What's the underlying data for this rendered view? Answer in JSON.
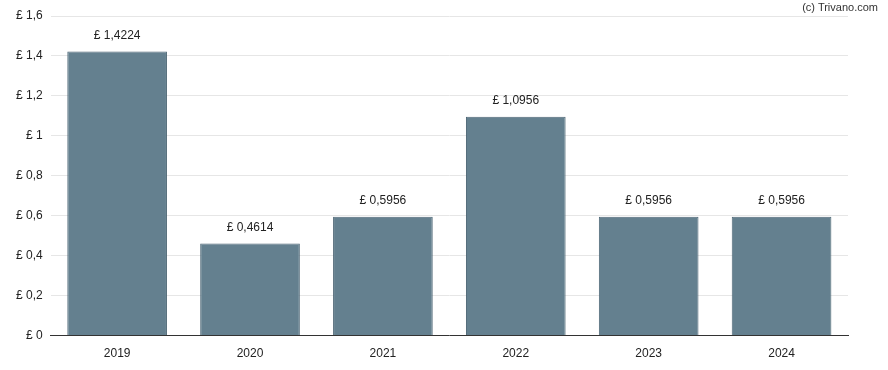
{
  "chart_data": {
    "type": "bar",
    "categories": [
      "2019",
      "2020",
      "2021",
      "2022",
      "2023",
      "2024"
    ],
    "values": [
      1.4224,
      0.4614,
      0.5956,
      1.0956,
      0.5956,
      0.5956
    ],
    "value_labels": [
      "£ 1,4224",
      "£ 0,4614",
      "£ 0,5956",
      "£ 1,0956",
      "£ 0,5956",
      "£ 0,5956"
    ],
    "color": "#64808f",
    "ylim": [
      0,
      1.6
    ],
    "yticks": [
      {
        "value": 0,
        "label": "£ 0"
      },
      {
        "value": 0.2,
        "label": "£ 0,2"
      },
      {
        "value": 0.4,
        "label": "£ 0,4"
      },
      {
        "value": 0.6,
        "label": "£ 0,6"
      },
      {
        "value": 0.8,
        "label": "£ 0,8"
      },
      {
        "value": 1,
        "label": "£ 1"
      },
      {
        "value": 1.2,
        "label": "£ 1,2"
      },
      {
        "value": 1.4,
        "label": "£ 1,4"
      },
      {
        "value": 1.6,
        "label": "£ 1,6"
      }
    ],
    "grid": true,
    "data_labels": true,
    "annotations": [
      "(c) Trivano.com"
    ]
  }
}
